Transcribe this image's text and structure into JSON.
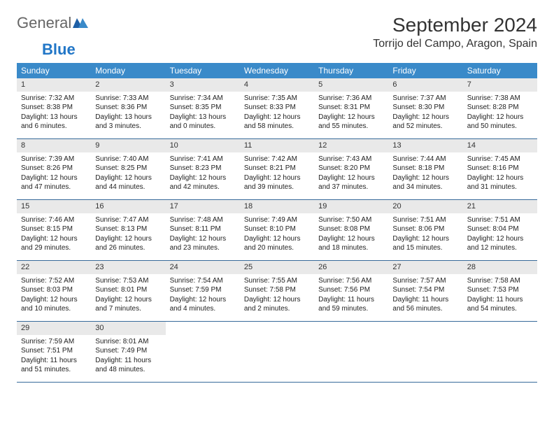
{
  "logo": {
    "text_general": "General",
    "text_blue": "Blue"
  },
  "title": "September 2024",
  "location": "Torrijo del Campo, Aragon, Spain",
  "header_bg": "#3a8ac9",
  "header_text_color": "#ffffff",
  "daynum_bg": "#e9e9e9",
  "week_border_color": "#376a9a",
  "day_headers": [
    "Sunday",
    "Monday",
    "Tuesday",
    "Wednesday",
    "Thursday",
    "Friday",
    "Saturday"
  ],
  "days": [
    {
      "n": 1,
      "sr": "Sunrise: 7:32 AM",
      "ss": "Sunset: 8:38 PM",
      "dl": "Daylight: 13 hours and 6 minutes."
    },
    {
      "n": 2,
      "sr": "Sunrise: 7:33 AM",
      "ss": "Sunset: 8:36 PM",
      "dl": "Daylight: 13 hours and 3 minutes."
    },
    {
      "n": 3,
      "sr": "Sunrise: 7:34 AM",
      "ss": "Sunset: 8:35 PM",
      "dl": "Daylight: 13 hours and 0 minutes."
    },
    {
      "n": 4,
      "sr": "Sunrise: 7:35 AM",
      "ss": "Sunset: 8:33 PM",
      "dl": "Daylight: 12 hours and 58 minutes."
    },
    {
      "n": 5,
      "sr": "Sunrise: 7:36 AM",
      "ss": "Sunset: 8:31 PM",
      "dl": "Daylight: 12 hours and 55 minutes."
    },
    {
      "n": 6,
      "sr": "Sunrise: 7:37 AM",
      "ss": "Sunset: 8:30 PM",
      "dl": "Daylight: 12 hours and 52 minutes."
    },
    {
      "n": 7,
      "sr": "Sunrise: 7:38 AM",
      "ss": "Sunset: 8:28 PM",
      "dl": "Daylight: 12 hours and 50 minutes."
    },
    {
      "n": 8,
      "sr": "Sunrise: 7:39 AM",
      "ss": "Sunset: 8:26 PM",
      "dl": "Daylight: 12 hours and 47 minutes."
    },
    {
      "n": 9,
      "sr": "Sunrise: 7:40 AM",
      "ss": "Sunset: 8:25 PM",
      "dl": "Daylight: 12 hours and 44 minutes."
    },
    {
      "n": 10,
      "sr": "Sunrise: 7:41 AM",
      "ss": "Sunset: 8:23 PM",
      "dl": "Daylight: 12 hours and 42 minutes."
    },
    {
      "n": 11,
      "sr": "Sunrise: 7:42 AM",
      "ss": "Sunset: 8:21 PM",
      "dl": "Daylight: 12 hours and 39 minutes."
    },
    {
      "n": 12,
      "sr": "Sunrise: 7:43 AM",
      "ss": "Sunset: 8:20 PM",
      "dl": "Daylight: 12 hours and 37 minutes."
    },
    {
      "n": 13,
      "sr": "Sunrise: 7:44 AM",
      "ss": "Sunset: 8:18 PM",
      "dl": "Daylight: 12 hours and 34 minutes."
    },
    {
      "n": 14,
      "sr": "Sunrise: 7:45 AM",
      "ss": "Sunset: 8:16 PM",
      "dl": "Daylight: 12 hours and 31 minutes."
    },
    {
      "n": 15,
      "sr": "Sunrise: 7:46 AM",
      "ss": "Sunset: 8:15 PM",
      "dl": "Daylight: 12 hours and 29 minutes."
    },
    {
      "n": 16,
      "sr": "Sunrise: 7:47 AM",
      "ss": "Sunset: 8:13 PM",
      "dl": "Daylight: 12 hours and 26 minutes."
    },
    {
      "n": 17,
      "sr": "Sunrise: 7:48 AM",
      "ss": "Sunset: 8:11 PM",
      "dl": "Daylight: 12 hours and 23 minutes."
    },
    {
      "n": 18,
      "sr": "Sunrise: 7:49 AM",
      "ss": "Sunset: 8:10 PM",
      "dl": "Daylight: 12 hours and 20 minutes."
    },
    {
      "n": 19,
      "sr": "Sunrise: 7:50 AM",
      "ss": "Sunset: 8:08 PM",
      "dl": "Daylight: 12 hours and 18 minutes."
    },
    {
      "n": 20,
      "sr": "Sunrise: 7:51 AM",
      "ss": "Sunset: 8:06 PM",
      "dl": "Daylight: 12 hours and 15 minutes."
    },
    {
      "n": 21,
      "sr": "Sunrise: 7:51 AM",
      "ss": "Sunset: 8:04 PM",
      "dl": "Daylight: 12 hours and 12 minutes."
    },
    {
      "n": 22,
      "sr": "Sunrise: 7:52 AM",
      "ss": "Sunset: 8:03 PM",
      "dl": "Daylight: 12 hours and 10 minutes."
    },
    {
      "n": 23,
      "sr": "Sunrise: 7:53 AM",
      "ss": "Sunset: 8:01 PM",
      "dl": "Daylight: 12 hours and 7 minutes."
    },
    {
      "n": 24,
      "sr": "Sunrise: 7:54 AM",
      "ss": "Sunset: 7:59 PM",
      "dl": "Daylight: 12 hours and 4 minutes."
    },
    {
      "n": 25,
      "sr": "Sunrise: 7:55 AM",
      "ss": "Sunset: 7:58 PM",
      "dl": "Daylight: 12 hours and 2 minutes."
    },
    {
      "n": 26,
      "sr": "Sunrise: 7:56 AM",
      "ss": "Sunset: 7:56 PM",
      "dl": "Daylight: 11 hours and 59 minutes."
    },
    {
      "n": 27,
      "sr": "Sunrise: 7:57 AM",
      "ss": "Sunset: 7:54 PM",
      "dl": "Daylight: 11 hours and 56 minutes."
    },
    {
      "n": 28,
      "sr": "Sunrise: 7:58 AM",
      "ss": "Sunset: 7:53 PM",
      "dl": "Daylight: 11 hours and 54 minutes."
    },
    {
      "n": 29,
      "sr": "Sunrise: 7:59 AM",
      "ss": "Sunset: 7:51 PM",
      "dl": "Daylight: 11 hours and 51 minutes."
    },
    {
      "n": 30,
      "sr": "Sunrise: 8:01 AM",
      "ss": "Sunset: 7:49 PM",
      "dl": "Daylight: 11 hours and 48 minutes."
    }
  ],
  "start_weekday": 0,
  "total_cells": 35
}
